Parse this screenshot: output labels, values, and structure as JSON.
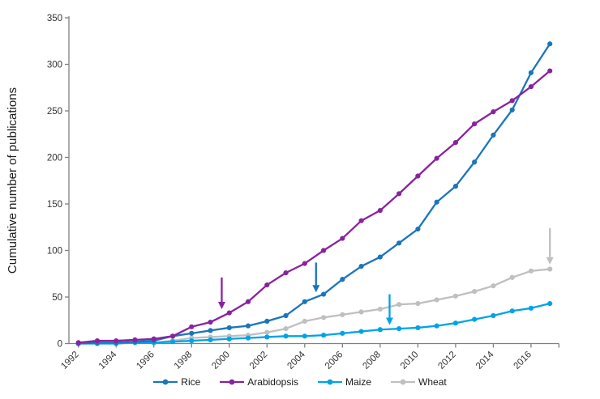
{
  "figure": {
    "background": "#ffffff",
    "axis_color": "#808080",
    "tick_text_color": "#333333",
    "title_text_color": "#1a1a1a"
  },
  "chart_data": {
    "type": "line",
    "title": "",
    "xlabel": "",
    "ylabel": "Cumulative number of publications",
    "ylim": [
      0,
      350
    ],
    "yticks": [
      0,
      50,
      100,
      150,
      200,
      250,
      300,
      350
    ],
    "grid": false,
    "legend_position": "bottom",
    "x": [
      1992,
      1993,
      1994,
      1995,
      1996,
      1997,
      1998,
      1999,
      2000,
      2001,
      2002,
      2003,
      2004,
      2005,
      2006,
      2007,
      2008,
      2009,
      2010,
      2011,
      2012,
      2013,
      2014,
      2015,
      2016,
      2017
    ],
    "xtick_labels": [
      "1992",
      "1994",
      "1996",
      "1998",
      "2000",
      "2002",
      "2004",
      "2006",
      "2008",
      "2010",
      "2012",
      "2014",
      "2016"
    ],
    "series": [
      {
        "name": "Rice",
        "color": "#1B75BC",
        "values": [
          0,
          1,
          1,
          2,
          3,
          8,
          11,
          14,
          17,
          19,
          24,
          30,
          45,
          53,
          69,
          83,
          93,
          108,
          123,
          152,
          169,
          195,
          224,
          251,
          291,
          322
        ]
      },
      {
        "name": "Arabidopsis",
        "color": "#8A22A0",
        "values": [
          1,
          3,
          3,
          4,
          5,
          8,
          18,
          23,
          33,
          45,
          63,
          76,
          86,
          100,
          113,
          132,
          143,
          161,
          180,
          199,
          216,
          236,
          249,
          261,
          276,
          293
        ]
      },
      {
        "name": "Maize",
        "color": "#00A3E8",
        "values": [
          0,
          0,
          0,
          1,
          1,
          2,
          3,
          4,
          5,
          6,
          7,
          8,
          8,
          9,
          11,
          13,
          15,
          16,
          17,
          19,
          22,
          26,
          30,
          35,
          38,
          43
        ]
      },
      {
        "name": "Wheat",
        "color": "#BFBFBF",
        "values": [
          0,
          0,
          0,
          1,
          1,
          3,
          6,
          7,
          8,
          9,
          12,
          16,
          24,
          28,
          31,
          34,
          37,
          42,
          43,
          47,
          51,
          56,
          62,
          71,
          78,
          80
        ]
      }
    ],
    "annotations": [
      {
        "type": "arrow",
        "series": "Arabidopsis",
        "color": "#8A22A0",
        "x": 1999.6,
        "y_from": 71,
        "y_to": 37
      },
      {
        "type": "arrow",
        "series": "Rice",
        "color": "#1B75BC",
        "x": 2004.6,
        "y_from": 87,
        "y_to": 55
      },
      {
        "type": "arrow",
        "series": "Maize",
        "color": "#00A3E8",
        "x": 2008.5,
        "y_from": 53,
        "y_to": 20
      },
      {
        "type": "arrow",
        "series": "Wheat",
        "color": "#BFBFBF",
        "x": 2017,
        "y_from": 124,
        "y_to": 85
      }
    ]
  }
}
